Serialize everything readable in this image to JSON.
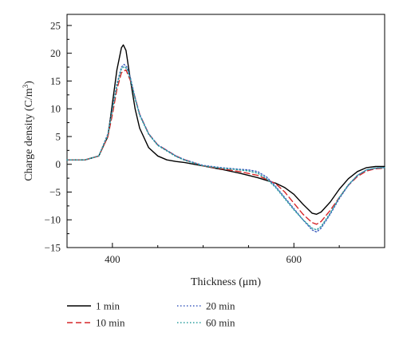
{
  "chart_data": {
    "type": "line",
    "title": "",
    "xlabel": "Thickness (μm)",
    "ylabel": "Charge density (C/m3)",
    "ylabel_main": "Charge density (C/m",
    "ylabel_sup": "3",
    "ylabel_close": ")",
    "xlim": [
      350,
      700
    ],
    "ylim": [
      -15,
      27
    ],
    "x_ticks": [
      400,
      600
    ],
    "x_tick_labels": [
      "400",
      "600"
    ],
    "y_ticks": [
      -15,
      -10,
      -5,
      0,
      5,
      10,
      15,
      20,
      25
    ],
    "y_tick_labels": [
      "−15",
      "−10",
      "−5",
      "0",
      "5",
      "10",
      "15",
      "20",
      "25"
    ],
    "grid": false,
    "legend_position": "bottom",
    "series": [
      {
        "name": "1 min",
        "color": "#000000",
        "style": "solid",
        "x": [
          350,
          370,
          385,
          395,
          400,
          405,
          410,
          412,
          415,
          420,
          425,
          430,
          440,
          450,
          460,
          470,
          480,
          500,
          520,
          540,
          560,
          580,
          590,
          600,
          610,
          620,
          625,
          630,
          640,
          650,
          660,
          670,
          680,
          690,
          700
        ],
        "y": [
          0.8,
          0.8,
          1.5,
          5,
          11,
          17,
          21,
          21.5,
          20.5,
          15,
          10,
          6.5,
          3,
          1.5,
          0.8,
          0.5,
          0.3,
          -0.3,
          -0.9,
          -1.6,
          -2.4,
          -3.4,
          -4.2,
          -5.4,
          -7.2,
          -8.8,
          -9.0,
          -8.6,
          -6.8,
          -4.5,
          -2.6,
          -1.3,
          -0.6,
          -0.4,
          -0.4
        ]
      },
      {
        "name": "10 min",
        "color": "#d62728",
        "style": "dashed",
        "x": [
          350,
          370,
          385,
          395,
          400,
          405,
          410,
          415,
          420,
          425,
          430,
          440,
          450,
          460,
          470,
          480,
          500,
          520,
          540,
          560,
          580,
          590,
          600,
          610,
          620,
          625,
          630,
          640,
          650,
          660,
          670,
          680,
          690,
          700
        ],
        "y": [
          0.8,
          0.8,
          1.5,
          5,
          9,
          13.5,
          16.5,
          17,
          15,
          12,
          9,
          5.5,
          3.5,
          2.5,
          1.5,
          0.8,
          -0.3,
          -0.8,
          -1.3,
          -2.0,
          -3.5,
          -5.0,
          -7.0,
          -9.0,
          -10.5,
          -10.8,
          -10.3,
          -8.3,
          -6.0,
          -3.8,
          -2.2,
          -1.2,
          -0.8,
          -0.7
        ]
      },
      {
        "name": "20 min",
        "color": "#3f5fbf",
        "style": "dotted",
        "x": [
          350,
          370,
          385,
          395,
          400,
          405,
          410,
          413,
          416,
          420,
          425,
          430,
          440,
          450,
          460,
          470,
          480,
          500,
          520,
          540,
          550,
          560,
          570,
          580,
          590,
          600,
          610,
          620,
          625,
          630,
          640,
          650,
          660,
          670,
          680,
          690,
          700
        ],
        "y": [
          0.8,
          0.8,
          1.5,
          5.5,
          10,
          14.5,
          17.5,
          18,
          17.5,
          15.5,
          12,
          9,
          5.5,
          3.5,
          2.5,
          1.5,
          0.8,
          -0.2,
          -0.6,
          -0.9,
          -1.0,
          -1.3,
          -2.3,
          -4.0,
          -6.0,
          -8.0,
          -10.0,
          -11.8,
          -12.2,
          -11.5,
          -9.0,
          -6.2,
          -3.8,
          -2.0,
          -1.0,
          -0.7,
          -0.6
        ]
      },
      {
        "name": "60 min",
        "color": "#2a9d9d",
        "style": "dotted",
        "x": [
          350,
          370,
          385,
          395,
          400,
          405,
          410,
          413,
          416,
          420,
          425,
          430,
          440,
          450,
          460,
          470,
          480,
          500,
          520,
          540,
          550,
          560,
          570,
          580,
          590,
          600,
          610,
          620,
          625,
          630,
          640,
          650,
          660,
          670,
          680,
          690,
          700
        ],
        "y": [
          0.8,
          0.8,
          1.5,
          5.3,
          9.8,
          14.2,
          17.2,
          17.6,
          17.2,
          15.2,
          11.8,
          8.8,
          5.4,
          3.4,
          2.4,
          1.4,
          0.7,
          -0.3,
          -0.7,
          -1.0,
          -1.2,
          -1.6,
          -2.6,
          -4.2,
          -6.2,
          -8.2,
          -10.0,
          -11.5,
          -11.8,
          -11.2,
          -8.8,
          -6.0,
          -3.7,
          -2.0,
          -1.0,
          -0.7,
          -0.6
        ]
      }
    ]
  }
}
